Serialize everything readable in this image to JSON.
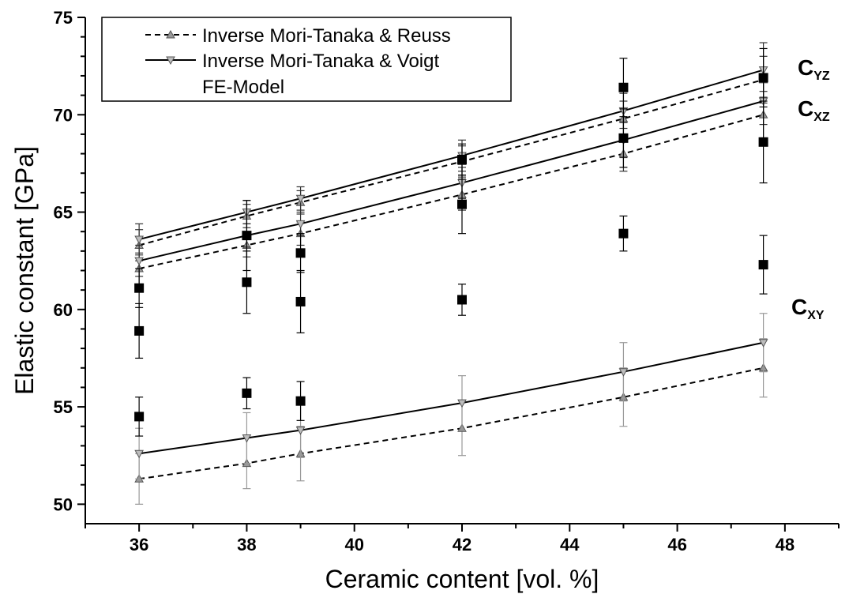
{
  "chart_data": {
    "type": "scatter",
    "xlabel": "Ceramic content [vol. %]",
    "ylabel": "Elastic constant [GPa]",
    "xlim": [
      35,
      49
    ],
    "ylim": [
      49,
      75
    ],
    "x_ticks": [
      "36",
      "38",
      "40",
      "42",
      "44",
      "46",
      "48"
    ],
    "y_ticks": [
      "50",
      "55",
      "60",
      "65",
      "70",
      "75"
    ],
    "grid": false,
    "legend_position": "top-left",
    "legend": [
      {
        "label": "Inverse Mori-Tanaka  & Reuss",
        "style": "dashed",
        "marker": "triangle-up"
      },
      {
        "label": "Inverse Mori-Tanaka  & Voigt",
        "style": "solid",
        "marker": "triangle-down"
      },
      {
        "label": "FE-Model",
        "style": "none",
        "marker": "square"
      }
    ],
    "curve_labels": [
      {
        "main": "C",
        "sub": "YZ"
      },
      {
        "main": "C",
        "sub": "XZ"
      },
      {
        "main": "C",
        "sub": "XY"
      }
    ],
    "x": [
      36,
      38,
      39,
      42,
      45,
      47.6
    ],
    "series": [
      {
        "group": "YZ",
        "style": "reuss",
        "values": [
          63.3,
          64.8,
          65.5,
          67.6,
          69.8,
          71.8
        ],
        "err": [
          0.8,
          0.6,
          0.6,
          0.8,
          0.9,
          1.2
        ]
      },
      {
        "group": "YZ",
        "style": "voigt",
        "values": [
          63.6,
          65.0,
          65.7,
          67.9,
          70.2,
          72.3
        ],
        "err": [
          0.8,
          0.6,
          0.6,
          0.8,
          0.9,
          1.4
        ]
      },
      {
        "group": "XZ",
        "style": "reuss",
        "values": [
          62.1,
          63.3,
          63.9,
          65.9,
          68.0,
          70.0
        ],
        "err": [
          0.8,
          0.6,
          0.6,
          0.8,
          0.9,
          1.2
        ]
      },
      {
        "group": "XZ",
        "style": "voigt",
        "values": [
          62.5,
          63.8,
          64.4,
          66.5,
          68.7,
          70.7
        ],
        "err": [
          0.8,
          0.6,
          0.6,
          0.8,
          0.9,
          1.2
        ]
      },
      {
        "group": "XY",
        "style": "reuss",
        "values": [
          51.3,
          52.1,
          52.6,
          53.9,
          55.5,
          57.0
        ],
        "err": [
          1.3,
          1.3,
          1.4,
          1.4,
          1.5,
          1.5
        ]
      },
      {
        "group": "XY",
        "style": "voigt",
        "values": [
          52.6,
          53.4,
          53.8,
          55.2,
          56.8,
          58.3
        ],
        "err": [
          1.3,
          1.3,
          1.4,
          1.4,
          1.5,
          1.5
        ]
      }
    ],
    "fe_model": [
      {
        "x": 36,
        "y": 61.1,
        "err": 1.0
      },
      {
        "x": 36,
        "y": 58.9,
        "err": 1.4
      },
      {
        "x": 36,
        "y": 54.5,
        "err": 1.0
      },
      {
        "x": 38,
        "y": 63.8,
        "err": 1.8
      },
      {
        "x": 38,
        "y": 61.4,
        "err": 1.6
      },
      {
        "x": 38,
        "y": 55.7,
        "err": 0.8
      },
      {
        "x": 39,
        "y": 62.9,
        "err": 1.0
      },
      {
        "x": 39,
        "y": 60.4,
        "err": 1.6
      },
      {
        "x": 39,
        "y": 55.3,
        "err": 1.0
      },
      {
        "x": 42,
        "y": 67.7,
        "err": 0.8
      },
      {
        "x": 42,
        "y": 65.4,
        "err": 1.5
      },
      {
        "x": 42,
        "y": 60.5,
        "err": 0.8
      },
      {
        "x": 45,
        "y": 71.4,
        "err": 1.5
      },
      {
        "x": 45,
        "y": 68.8,
        "err": 1.5
      },
      {
        "x": 45,
        "y": 63.9,
        "err": 0.9
      },
      {
        "x": 47.6,
        "y": 71.9,
        "err": 1.5
      },
      {
        "x": 47.6,
        "y": 68.6,
        "err": 2.1
      },
      {
        "x": 47.6,
        "y": 62.3,
        "err": 1.5
      }
    ]
  }
}
